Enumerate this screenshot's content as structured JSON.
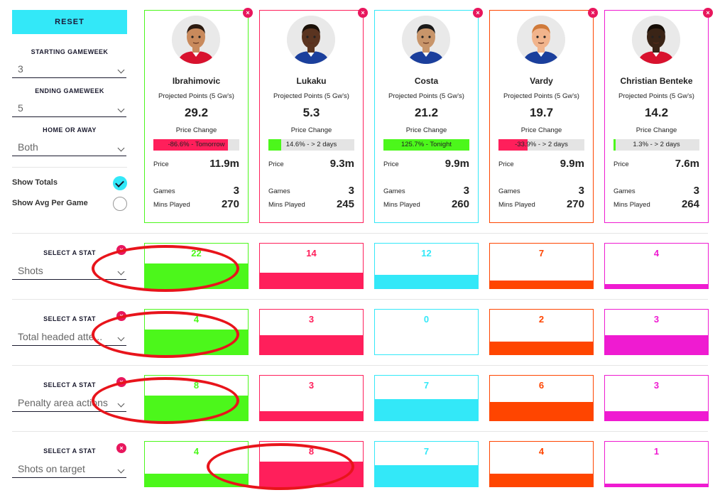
{
  "sidebar": {
    "reset_label": "RESET",
    "starting_gameweek_label": "STARTING GAMEWEEK",
    "starting_gameweek_value": "3",
    "ending_gameweek_label": "ENDING GAMEWEEK",
    "ending_gameweek_value": "5",
    "home_away_label": "HOME OR AWAY",
    "home_away_value": "Both",
    "show_totals_label": "Show Totals",
    "show_totals_checked": true,
    "show_avg_label": "Show Avg Per Game",
    "show_avg_checked": false
  },
  "labels": {
    "projected_points": "Projected Points (5 Gw's)",
    "price_change": "Price Change",
    "price": "Price",
    "games": "Games",
    "mins_played": "Mins Played",
    "select_stat": "SELECT A STAT",
    "remove": "×"
  },
  "colors": {
    "cyan": "#33e8f8",
    "green": "#4cf71b",
    "pink_red": "#ff1f5b",
    "cyan_dark": "#33e8f8",
    "orange": "#ff4500",
    "magenta": "#ef1bd1",
    "remove": "#e8175d"
  },
  "players": [
    {
      "name": "Ibrahimovic",
      "projected_points": "29.2",
      "price_change_text": "-86.6% - Tomorrow",
      "price_change_fill": 0.87,
      "price_change_color": "#ff1f5b",
      "price": "11.9m",
      "games": "3",
      "mins_played": "270",
      "border_color": "#4cf71b",
      "kit_color": "#d8122e",
      "skin_color": "#c98a5c",
      "hair_color": "#2b1a10"
    },
    {
      "name": "Lukaku",
      "projected_points": "5.3",
      "price_change_text": "14.6% - > 2 days",
      "price_change_fill": 0.15,
      "price_change_color": "#4cf71b",
      "price": "9.3m",
      "games": "3",
      "mins_played": "245",
      "border_color": "#ff1f5b",
      "kit_color": "#1b3f9c",
      "skin_color": "#5a3420",
      "hair_color": "#1a1008"
    },
    {
      "name": "Costa",
      "projected_points": "21.2",
      "price_change_text": "125.7% - Tonight",
      "price_change_fill": 1.0,
      "price_change_color": "#4cf71b",
      "price": "9.9m",
      "games": "3",
      "mins_played": "260",
      "border_color": "#33e8f8",
      "kit_color": "#1b3f9c",
      "skin_color": "#c8956a",
      "hair_color": "#1a1a1a"
    },
    {
      "name": "Vardy",
      "projected_points": "19.7",
      "price_change_text": "-33.9% - > 2 days",
      "price_change_fill": 0.34,
      "price_change_color": "#ff1f5b",
      "price": "9.9m",
      "games": "3",
      "mins_played": "270",
      "border_color": "#ff4500",
      "kit_color": "#1b3f9c",
      "skin_color": "#f1b48c",
      "hair_color": "#d07a3a"
    },
    {
      "name": "Christian Benteke",
      "projected_points": "14.2",
      "price_change_text": "1.3% - > 2 days",
      "price_change_fill": 0.02,
      "price_change_color": "#4cf71b",
      "price": "7.6m",
      "games": "3",
      "mins_played": "264",
      "border_color": "#ef1bd1",
      "kit_color": "#d8122e",
      "skin_color": "#3a2416",
      "hair_color": "#150c06"
    }
  ],
  "stat_rows": [
    {
      "stat": "Shots",
      "values": [
        "22",
        "14",
        "12",
        "7",
        "4"
      ],
      "fills": [
        0.55,
        0.35,
        0.3,
        0.17,
        0.1
      ]
    },
    {
      "stat": "Total headed atte...",
      "values": [
        "4",
        "3",
        "0",
        "2",
        "3"
      ],
      "fills": [
        0.55,
        0.43,
        0.0,
        0.29,
        0.43
      ]
    },
    {
      "stat": "Penalty area actions",
      "values": [
        "8",
        "3",
        "7",
        "6",
        "3"
      ],
      "fills": [
        0.55,
        0.21,
        0.48,
        0.41,
        0.21
      ]
    },
    {
      "stat": "Shots on target",
      "values": [
        "4",
        "8",
        "7",
        "4",
        "1"
      ],
      "fills": [
        0.28,
        0.55,
        0.48,
        0.28,
        0.07
      ]
    }
  ],
  "highlight_rings": [
    {
      "row": 0,
      "col": 0
    },
    {
      "row": 1,
      "col": 0
    },
    {
      "row": 2,
      "col": 0
    },
    {
      "row": 3,
      "col": 1
    }
  ]
}
